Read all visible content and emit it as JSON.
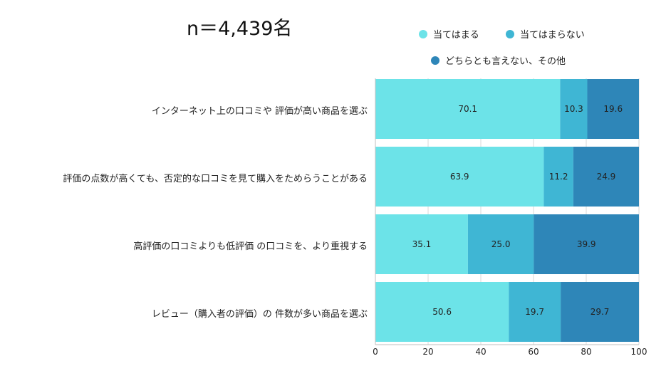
{
  "sample_label": "n＝4,439名",
  "chart_data": {
    "type": "bar",
    "orientation": "horizontal",
    "stacked": true,
    "categories": [
      "インターネット上の口コミや 評価が高い商品を選ぶ",
      "評価の点数が高くても、否定的な口コミを見て購入をためらうことがある",
      "高評価の口コミよりも低評価 の口コミを、より重視する",
      "レビュー（購入者の評価）の 件数が多い商品を選ぶ"
    ],
    "series": [
      {
        "name": "当てはまる",
        "values": [
          70.1,
          63.9,
          35.1,
          50.6
        ],
        "color": "#6ce3e8"
      },
      {
        "name": "当てはまらない",
        "values": [
          10.3,
          11.2,
          25.0,
          19.7
        ],
        "color": "#3fb6d4"
      },
      {
        "name": "どちらとも言えない、その他",
        "values": [
          19.6,
          24.9,
          39.9,
          29.7
        ],
        "color": "#2e86b8"
      }
    ],
    "value_labels": [
      [
        "70.1",
        "10.3",
        "19.6"
      ],
      [
        "63.9",
        "11.2",
        "24.9"
      ],
      [
        "35.1",
        "25.0",
        "39.9"
      ],
      [
        "50.6",
        "19.7",
        "29.7"
      ]
    ],
    "xlim": [
      0,
      100
    ],
    "xticks": [
      "0",
      "20",
      "40",
      "60",
      "80",
      "100"
    ],
    "grid": true,
    "legend_position": "top-right"
  }
}
